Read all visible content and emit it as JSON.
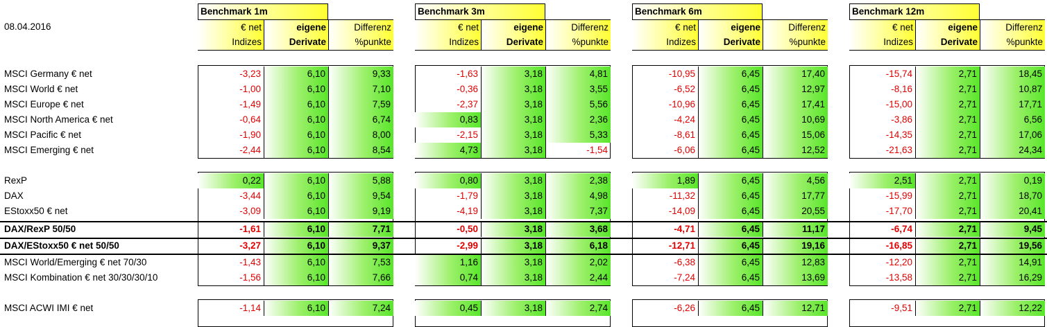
{
  "date": "08.04.2016",
  "benchmarks": [
    {
      "title": "Benchmark 1m"
    },
    {
      "title": "Benchmark 3m"
    },
    {
      "title": "Benchmark 6m"
    },
    {
      "title": "Benchmark 12m"
    }
  ],
  "col_headers": [
    {
      "line1": "€ net",
      "line2": "Indizes"
    },
    {
      "line1": "eigene",
      "line2": "Derivate"
    },
    {
      "line1": "Differenz",
      "line2": "%punkte"
    }
  ],
  "rows": [
    {
      "label": "MSCI Germany € net",
      "bold": false,
      "values": [
        [
          "-3,23",
          "6,10",
          "9,33"
        ],
        [
          "-1,63",
          "3,18",
          "4,81"
        ],
        [
          "-10,95",
          "6,45",
          "17,40"
        ],
        [
          "-15,74",
          "2,71",
          "18,45"
        ]
      ]
    },
    {
      "label": "MSCI World € net",
      "bold": false,
      "values": [
        [
          "-1,00",
          "6,10",
          "7,10"
        ],
        [
          "-0,36",
          "3,18",
          "3,55"
        ],
        [
          "-6,52",
          "6,45",
          "12,97"
        ],
        [
          "-8,16",
          "2,71",
          "10,87"
        ]
      ]
    },
    {
      "label": "MSCI Europe € net",
      "bold": false,
      "values": [
        [
          "-1,49",
          "6,10",
          "7,59"
        ],
        [
          "-2,37",
          "3,18",
          "5,56"
        ],
        [
          "-10,96",
          "6,45",
          "17,41"
        ],
        [
          "-15,00",
          "2,71",
          "17,71"
        ]
      ]
    },
    {
      "label": "MSCI North America € net",
      "bold": false,
      "values": [
        [
          "-0,64",
          "6,10",
          "6,74"
        ],
        [
          "0,83",
          "3,18",
          "2,36"
        ],
        [
          "-4,24",
          "6,45",
          "10,69"
        ],
        [
          "-3,86",
          "2,71",
          "6,56"
        ]
      ]
    },
    {
      "label": "MSCI Pacific € net",
      "bold": false,
      "values": [
        [
          "-1,90",
          "6,10",
          "8,00"
        ],
        [
          "-2,15",
          "3,18",
          "5,33"
        ],
        [
          "-8,61",
          "6,45",
          "15,06"
        ],
        [
          "-14,35",
          "2,71",
          "17,06"
        ]
      ]
    },
    {
      "label": "MSCI Emerging € net",
      "bold": false,
      "values": [
        [
          "-2,44",
          "6,10",
          "8,54"
        ],
        [
          "4,73",
          "3,18",
          "-1,54"
        ],
        [
          "-6,06",
          "6,45",
          "12,52"
        ],
        [
          "-21,63",
          "2,71",
          "24,34"
        ]
      ]
    },
    {
      "label": "RexP",
      "bold": false,
      "values": [
        [
          "0,22",
          "6,10",
          "5,88"
        ],
        [
          "0,80",
          "3,18",
          "2,38"
        ],
        [
          "1,89",
          "6,45",
          "4,56"
        ],
        [
          "2,51",
          "2,71",
          "0,19"
        ]
      ]
    },
    {
      "label": "DAX",
      "bold": false,
      "values": [
        [
          "-3,44",
          "6,10",
          "9,54"
        ],
        [
          "-1,79",
          "3,18",
          "4,98"
        ],
        [
          "-11,32",
          "6,45",
          "17,77"
        ],
        [
          "-15,99",
          "2,71",
          "18,70"
        ]
      ]
    },
    {
      "label": "EStoxx50 € net",
      "bold": false,
      "values": [
        [
          "-3,09",
          "6,10",
          "9,19"
        ],
        [
          "-4,19",
          "3,18",
          "7,37"
        ],
        [
          "-14,09",
          "6,45",
          "20,55"
        ],
        [
          "-17,70",
          "2,71",
          "20,41"
        ]
      ]
    },
    {
      "label": "DAX/RexP 50/50",
      "bold": true,
      "values": [
        [
          "-1,61",
          "6,10",
          "7,71"
        ],
        [
          "-0,50",
          "3,18",
          "3,68"
        ],
        [
          "-4,71",
          "6,45",
          "11,17"
        ],
        [
          "-6,74",
          "2,71",
          "9,45"
        ]
      ]
    },
    {
      "label": "DAX/EStoxx50 € net 50/50",
      "bold": true,
      "values": [
        [
          "-3,27",
          "6,10",
          "9,37"
        ],
        [
          "-2,99",
          "3,18",
          "6,18"
        ],
        [
          "-12,71",
          "6,45",
          "19,16"
        ],
        [
          "-16,85",
          "2,71",
          "19,56"
        ]
      ]
    },
    {
      "label": "MSCI World/Emerging € net 70/30",
      "bold": false,
      "values": [
        [
          "-1,43",
          "6,10",
          "7,53"
        ],
        [
          "1,16",
          "3,18",
          "2,02"
        ],
        [
          "-6,38",
          "6,45",
          "12,83"
        ],
        [
          "-12,20",
          "2,71",
          "14,91"
        ]
      ]
    },
    {
      "label": "MSCI Kombination € net 30/30/30/10",
      "bold": false,
      "values": [
        [
          "-1,56",
          "6,10",
          "7,66"
        ],
        [
          "0,74",
          "3,18",
          "2,44"
        ],
        [
          "-7,24",
          "6,45",
          "13,69"
        ],
        [
          "-13,58",
          "2,71",
          "16,29"
        ]
      ]
    },
    {
      "label": "MSCI ACWI IMI € net",
      "bold": false,
      "values": [
        [
          "-1,14",
          "6,10",
          "7,24"
        ],
        [
          "0,45",
          "3,18",
          "2,74"
        ],
        [
          "-6,26",
          "6,45",
          "12,71"
        ],
        [
          "-9,51",
          "2,71",
          "12,22"
        ]
      ]
    }
  ],
  "colors": {
    "negative": "#e00000",
    "header_yellow": "#ffff33",
    "positive_green": "#59e62b"
  }
}
